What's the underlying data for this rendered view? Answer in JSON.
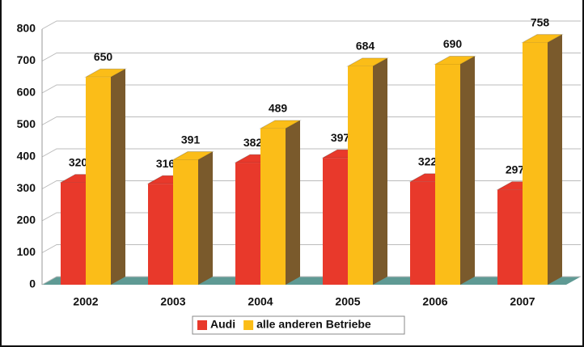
{
  "chart_data": {
    "type": "bar3d",
    "categories": [
      "2002",
      "2003",
      "2004",
      "2005",
      "2006",
      "2007"
    ],
    "series": [
      {
        "name": "Audi",
        "color": "#e8392b",
        "side": "#8a1c12",
        "values": [
          320,
          316,
          382,
          397,
          322,
          297
        ]
      },
      {
        "name": "alle anderen Betriebe",
        "color": "#fbbd18",
        "side": "#7a5a2c",
        "values": [
          650,
          391,
          489,
          684,
          690,
          758
        ]
      }
    ],
    "ylim": [
      0,
      800
    ],
    "yticks": [
      0,
      100,
      200,
      300,
      400,
      500,
      600,
      700,
      800
    ],
    "grid": true,
    "legend": "bottom"
  }
}
